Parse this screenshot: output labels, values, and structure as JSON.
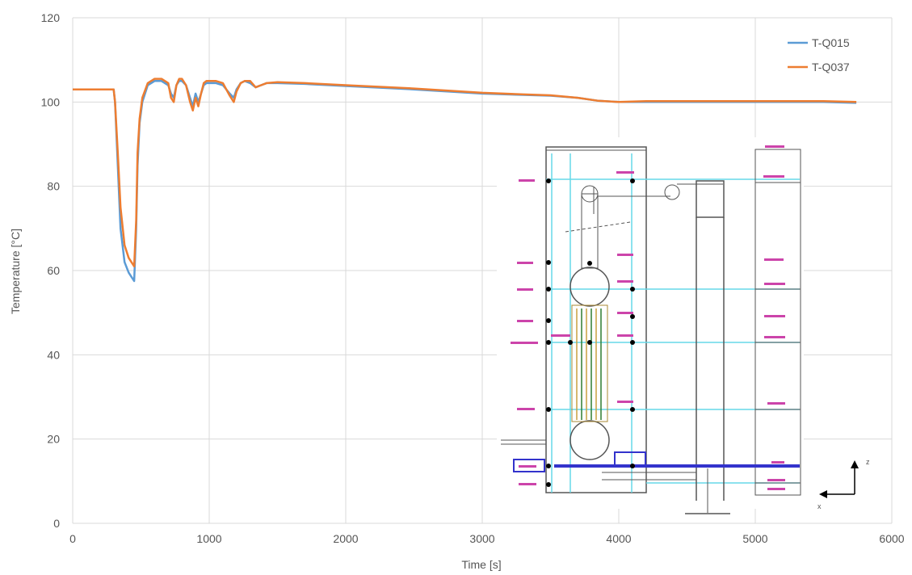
{
  "chart_data": {
    "type": "line",
    "title": "",
    "xlabel": "Time [s]",
    "ylabel": "Temperature [°C]",
    "xlim": [
      0,
      6000
    ],
    "ylim": [
      0,
      120
    ],
    "xticks": [
      0,
      1000,
      2000,
      3000,
      4000,
      5000,
      6000
    ],
    "yticks": [
      0,
      20,
      40,
      60,
      80,
      100,
      120
    ],
    "grid": true,
    "legend_position": "top-right",
    "series": [
      {
        "name": "T-Q015",
        "color": "#5b9bd5",
        "x": [
          0,
          300,
          310,
          330,
          350,
          380,
          410,
          430,
          450,
          465,
          475,
          490,
          510,
          550,
          600,
          650,
          700,
          720,
          740,
          760,
          780,
          800,
          830,
          860,
          880,
          900,
          920,
          940,
          960,
          980,
          1000,
          1050,
          1100,
          1150,
          1180,
          1200,
          1230,
          1260,
          1300,
          1340,
          1380,
          1420,
          1500,
          1700,
          2000,
          2500,
          3000,
          3300,
          3500,
          3700,
          3850,
          4000,
          4200,
          4500,
          5000,
          5500,
          5740
        ],
        "y": [
          103,
          103,
          100,
          85,
          70,
          62,
          59.5,
          58.5,
          57.5,
          70,
          85,
          95,
          100,
          104,
          105,
          105,
          104,
          102,
          101,
          104,
          105,
          105,
          104,
          101,
          99,
          102,
          100,
          102,
          104,
          104.5,
          104.5,
          104.5,
          104,
          102,
          101,
          103,
          104.5,
          105,
          104.5,
          103.5,
          104,
          104.5,
          104.5,
          104.3,
          103.8,
          103,
          102,
          101.7,
          101.5,
          101,
          100.3,
          100,
          100,
          100,
          100,
          100,
          99.8
        ]
      },
      {
        "name": "T-Q037",
        "color": "#ed7d31",
        "x": [
          0,
          300,
          310,
          330,
          350,
          380,
          410,
          430,
          450,
          465,
          475,
          490,
          510,
          550,
          600,
          650,
          700,
          720,
          740,
          760,
          780,
          800,
          830,
          860,
          880,
          900,
          920,
          940,
          960,
          980,
          1000,
          1050,
          1100,
          1150,
          1180,
          1200,
          1230,
          1260,
          1300,
          1340,
          1380,
          1420,
          1500,
          1700,
          2000,
          2500,
          3000,
          3300,
          3500,
          3700,
          3850,
          4000,
          4200,
          4500,
          5000,
          5500,
          5740
        ],
        "y": [
          103,
          103,
          100,
          88,
          75,
          66,
          63,
          62,
          61,
          72,
          88,
          96,
          101,
          104.5,
          105.5,
          105.5,
          104.5,
          101,
          100,
          104,
          105.5,
          105.5,
          104,
          100,
          98,
          101,
          99,
          102,
          104.5,
          105,
          105,
          105,
          104.5,
          101.5,
          100,
          102.5,
          104.5,
          105,
          105,
          103.5,
          104,
          104.5,
          104.7,
          104.5,
          104,
          103.2,
          102.2,
          101.8,
          101.6,
          101,
          100.3,
          100,
          100.2,
          100.2,
          100.2,
          100.2,
          100
        ]
      }
    ]
  },
  "inset": {
    "axis_z_label": "z",
    "axis_x_label": "x",
    "cyan": "#66d9e8",
    "blue": "#3333cc",
    "pink": "#cc44aa"
  }
}
